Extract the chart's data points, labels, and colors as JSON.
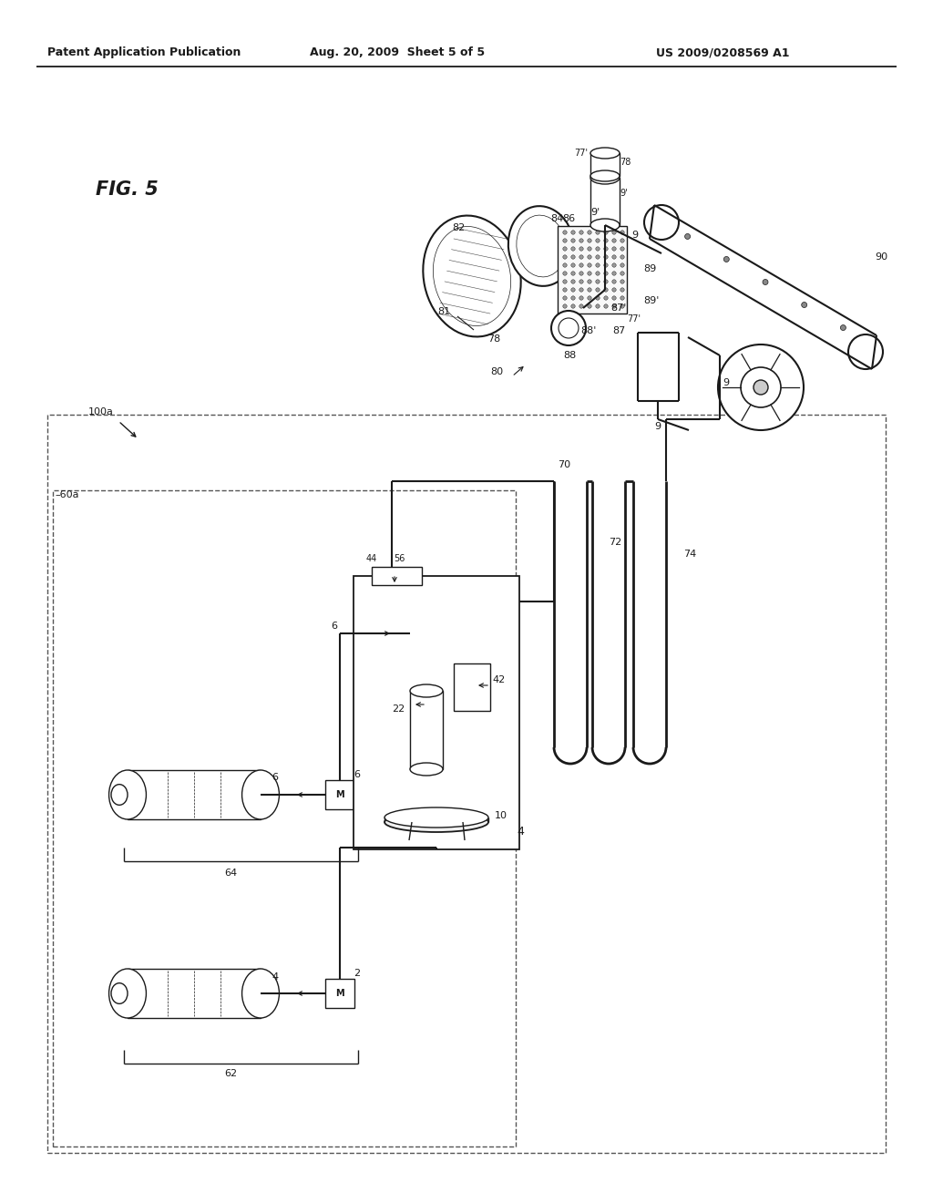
{
  "header_left": "Patent Application Publication",
  "header_center": "Aug. 20, 2009  Sheet 5 of 5",
  "header_right": "US 2009/0208569 A1",
  "fig_label": "FIG. 5",
  "bg": "#ffffff",
  "lc": "#1a1a1a",
  "dc": "#555555"
}
